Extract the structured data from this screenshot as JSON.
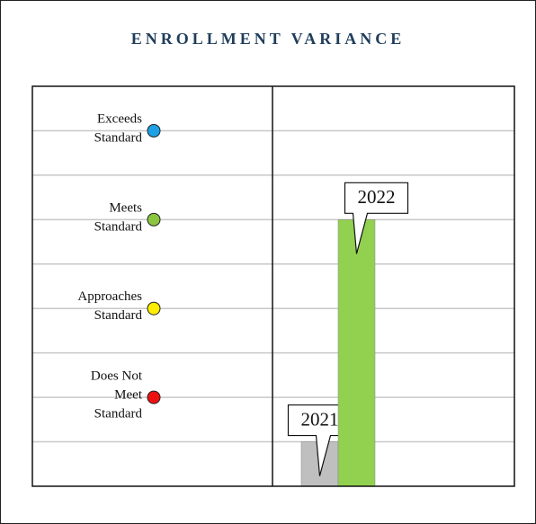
{
  "chart_data": {
    "type": "bar",
    "title": "ENROLLMENT VARIANCE",
    "categories": [
      "2021",
      "2022"
    ],
    "values": [
      1,
      6
    ],
    "colors": [
      "#bfbfbf",
      "#92d050"
    ],
    "ylim": [
      0,
      9
    ],
    "yticks": [
      1,
      2,
      3,
      4,
      5,
      6,
      7,
      8
    ],
    "grid": true,
    "levels": [
      {
        "lines": [
          "Exceeds",
          "Standard"
        ],
        "value": 8,
        "color": "#1ea0e6"
      },
      {
        "lines": [
          "Meets",
          "Standard"
        ],
        "value": 6,
        "color": "#8cc63f"
      },
      {
        "lines": [
          "Approaches",
          "Standard"
        ],
        "value": 4,
        "color": "#ffee00"
      },
      {
        "lines": [
          "Does Not",
          "Meet",
          "Standard"
        ],
        "value": 2,
        "color": "#ee1111"
      }
    ]
  }
}
